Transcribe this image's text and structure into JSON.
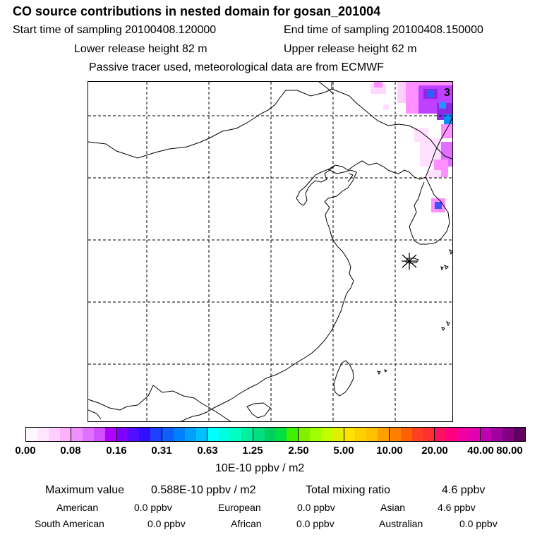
{
  "header": {
    "title": "CO  source contributions in nested domain for gosan_201004",
    "start_time": "Start time of sampling 20100408.120000",
    "end_time": "End time of sampling 20100408.150000",
    "lower_release": "Lower release height   82 m",
    "upper_release": "Upper release height   62 m",
    "tracer_note": "Passive tracer used, meteorological data are from ECMWF"
  },
  "map": {
    "corner_label": "3",
    "receptor_symbol": "receptor-star",
    "palette": [
      "#ffe6ff",
      "#ff80ff",
      "#b000ff",
      "#3010ff",
      "#0080ff",
      "#00ffff",
      "#00e080",
      "#a0ff00",
      "#ffd000",
      "#ff3030",
      "#ff0080",
      "#800080"
    ]
  },
  "colorbar": {
    "ticks": [
      "0.00",
      "0.08",
      "0.16",
      "0.31",
      "0.63",
      "1.25",
      "2.50",
      "5.00",
      "10.00",
      "20.00",
      "40.00",
      "80.00"
    ],
    "unit": "10E-10 ppbv / m2"
  },
  "summary": {
    "max_label": "Maximum value",
    "max_value": "0.588E-10 ppbv / m2",
    "total_label": "Total mixing ratio",
    "total_value": "4.6 ppbv",
    "regions": [
      {
        "name": "American",
        "value": "0.0 ppbv"
      },
      {
        "name": "European",
        "value": "0.0 ppbv"
      },
      {
        "name": "Asian",
        "value": "4.6 ppbv"
      },
      {
        "name": "South American",
        "value": "0.0 ppbv"
      },
      {
        "name": "African",
        "value": "0.0 ppbv"
      },
      {
        "name": "Australian",
        "value": "0.0 ppbv"
      }
    ]
  }
}
